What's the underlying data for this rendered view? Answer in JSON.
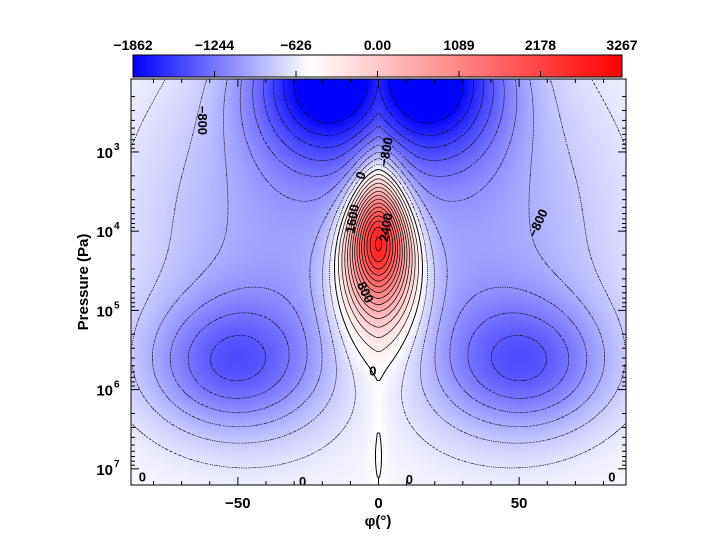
{
  "chart_data": {
    "type": "heatmap",
    "title": "",
    "xlabel": "φ(°)",
    "ylabel": "Pressure (Pa)",
    "xlim": [
      -88,
      88
    ],
    "ylim_pa": [
      120.0,
      16000000.0
    ],
    "y_scale": "log",
    "y_reversed": true,
    "x_ticks": [
      -50,
      0,
      50
    ],
    "x_tick_labels": [
      "−50",
      "0",
      "50"
    ],
    "y_ticks": [
      1000,
      10000,
      100000,
      1000000,
      10000000
    ],
    "y_tick_labels": [
      {
        "base": "10",
        "exp": "3"
      },
      {
        "base": "10",
        "exp": "4"
      },
      {
        "base": "10",
        "exp": "5"
      },
      {
        "base": "10",
        "exp": "6"
      },
      {
        "base": "10",
        "exp": "7"
      }
    ],
    "colorbar": {
      "position": "top",
      "min": -1862,
      "max": 3267,
      "tick_values": [
        -1862,
        -1244,
        -626,
        0,
        1089,
        2178,
        3267
      ],
      "tick_labels": [
        "−1862",
        "−1244",
        "−626",
        "0.00",
        "1089",
        "2178",
        "3267"
      ],
      "colors": {
        "negative": "#0000ff",
        "zero": "#ffffff",
        "positive": "#ff0000"
      }
    },
    "contour_interval": 200,
    "contour_labels": [
      {
        "text": "−800",
        "x": -63,
        "p": 400,
        "angle": 90
      },
      {
        "text": "−800",
        "x": 3,
        "p": 1000,
        "angle": -80
      },
      {
        "text": "0",
        "x": -6,
        "p": 2000,
        "angle": -70
      },
      {
        "text": "1600",
        "x": -9,
        "p": 7000,
        "angle": -80
      },
      {
        "text": "2400",
        "x": 3,
        "p": 9000,
        "angle": -80
      },
      {
        "text": "800",
        "x": -5,
        "p": 60000,
        "angle": 65
      },
      {
        "text": "0",
        "x": -2,
        "p": 600000,
        "angle": 0
      },
      {
        "text": "−800",
        "x": 57,
        "p": 8000,
        "angle": -65
      },
      {
        "text": "0",
        "x": -84,
        "p": 13000000,
        "angle": 0
      },
      {
        "text": "0",
        "x": -27,
        "p": 15000000,
        "angle": 0
      },
      {
        "text": "0",
        "x": 11,
        "p": 14000000,
        "angle": 0
      },
      {
        "text": "0",
        "x": 83,
        "p": 13000000,
        "angle": 0
      }
    ],
    "features": {
      "positive_max": {
        "x": 0,
        "p": 14000,
        "value": 3267
      },
      "negative_max_upper": {
        "x": -15,
        "p": 150,
        "value": -1862
      },
      "negative_secondary": {
        "x": -52,
        "p": 500000,
        "value": -900
      },
      "grid": false,
      "legend": "none"
    }
  }
}
